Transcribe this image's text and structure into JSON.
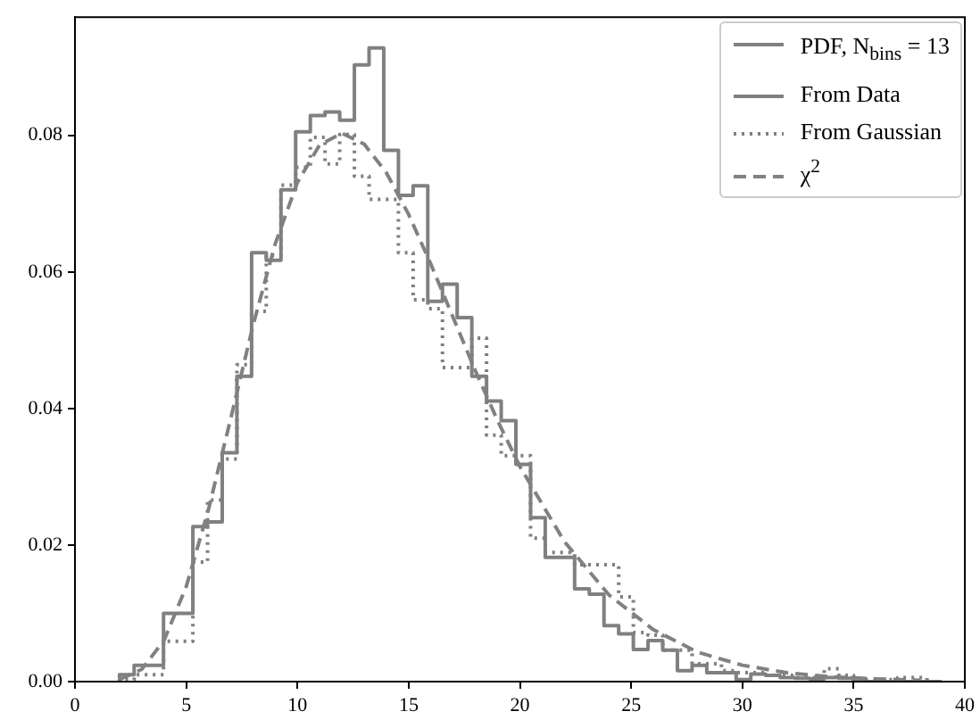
{
  "chart_data": {
    "type": "step",
    "legend_title": "PDF, N$_{bins}$ = 13",
    "x": [
      2.0,
      2.66,
      3.32,
      3.98,
      4.64,
      5.3,
      5.96,
      6.62,
      7.28,
      7.94,
      8.6,
      9.26,
      9.92,
      10.58,
      11.24,
      11.9,
      12.56,
      13.22,
      13.88,
      14.54,
      15.2,
      15.86,
      16.52,
      17.18,
      17.84,
      18.5,
      19.16,
      19.82,
      20.48,
      21.14,
      21.8,
      22.46,
      23.12,
      23.78,
      24.44,
      25.1,
      25.76,
      26.42,
      27.08,
      27.74,
      28.4,
      29.06,
      29.72,
      30.38,
      31.04,
      31.7,
      32.36,
      33.02,
      33.68,
      34.34,
      35.0,
      35.66,
      36.32,
      36.98,
      37.64,
      38.3,
      38.96
    ],
    "series": [
      {
        "name": "From Data",
        "color": "#808080",
        "line_style": "solid",
        "values": [
          0.0005,
          0.001,
          0.0024,
          0.0024,
          0.01,
          0.01,
          0.0227,
          0.0234,
          0.0335,
          0.0447,
          0.0628,
          0.0617,
          0.072,
          0.0805,
          0.0829,
          0.0834,
          0.0822,
          0.0903,
          0.0928,
          0.0778,
          0.0712,
          0.0726,
          0.0557,
          0.0582,
          0.0533,
          0.0447,
          0.0411,
          0.0382,
          0.0318,
          0.024,
          0.0182,
          0.0182,
          0.0136,
          0.0128,
          0.0082,
          0.007,
          0.0047,
          0.006,
          0.0046,
          0.0016,
          0.0024,
          0.0013,
          0.0013,
          0.0003,
          0.0011,
          0.0009,
          0.0006,
          0.0005,
          0.0004,
          0.0006,
          0.0005,
          0,
          0,
          0,
          0,
          0,
          0
        ]
      },
      {
        "name": "From Gaussian",
        "color": "#7f7f7f",
        "line_style": "dotted",
        "values": [
          0,
          0.0003,
          0.001,
          0.001,
          0.0059,
          0.0059,
          0.0175,
          0.0266,
          0.0326,
          0.0464,
          0.0542,
          0.0624,
          0.0727,
          0.0753,
          0.0797,
          0.0758,
          0.0801,
          0.074,
          0.0706,
          0.0706,
          0.0628,
          0.0559,
          0.0546,
          0.046,
          0.046,
          0.0503,
          0.0361,
          0.0331,
          0.0331,
          0.021,
          0.0189,
          0.0189,
          0.0171,
          0.0171,
          0.0171,
          0.0124,
          0.0072,
          0.0068,
          0.0046,
          0.0046,
          0.0026,
          0.0026,
          0.0016,
          0.0013,
          0.0013,
          0.0009,
          0.0009,
          0.0006,
          0.0006,
          0.0019,
          0.0009,
          0.0003,
          0.0003,
          0.0003,
          0.0006,
          0.0006,
          0
        ]
      },
      {
        "name": "χ$^{2}$",
        "type": "line",
        "color": "#818181",
        "line_style": "dashed",
        "x": [
          2,
          3,
          4,
          5,
          6,
          7,
          8,
          9,
          10,
          11,
          12,
          13,
          14,
          15,
          16,
          17,
          18,
          19,
          20,
          22,
          24,
          26,
          28,
          30,
          32,
          34,
          36,
          38
        ],
        "values": [
          0.0003,
          0.0018,
          0.006,
          0.0139,
          0.0252,
          0.0385,
          0.0521,
          0.0641,
          0.0731,
          0.0786,
          0.0803,
          0.0787,
          0.0745,
          0.0684,
          0.0611,
          0.0533,
          0.0455,
          0.0382,
          0.0315,
          0.0205,
          0.0127,
          0.0076,
          0.0043,
          0.0024,
          0.0013,
          0.0007,
          0.0004,
          0.0002
        ]
      }
    ],
    "xlim": [
      0,
      40
    ],
    "xticks": [
      0,
      5,
      10,
      15,
      20,
      25,
      30,
      35,
      40
    ],
    "ylim": [
      0,
      0.0973
    ],
    "yticks": [
      {
        "value": 0,
        "label": "0.00"
      },
      {
        "value": 0.02,
        "label": "0.02"
      },
      {
        "value": 0.04,
        "label": "0.04"
      },
      {
        "value": 0.06,
        "label": "0.06"
      },
      {
        "value": 0.08,
        "label": "0.08"
      }
    ],
    "grid": false,
    "legend": "top right",
    "marker": "none"
  }
}
